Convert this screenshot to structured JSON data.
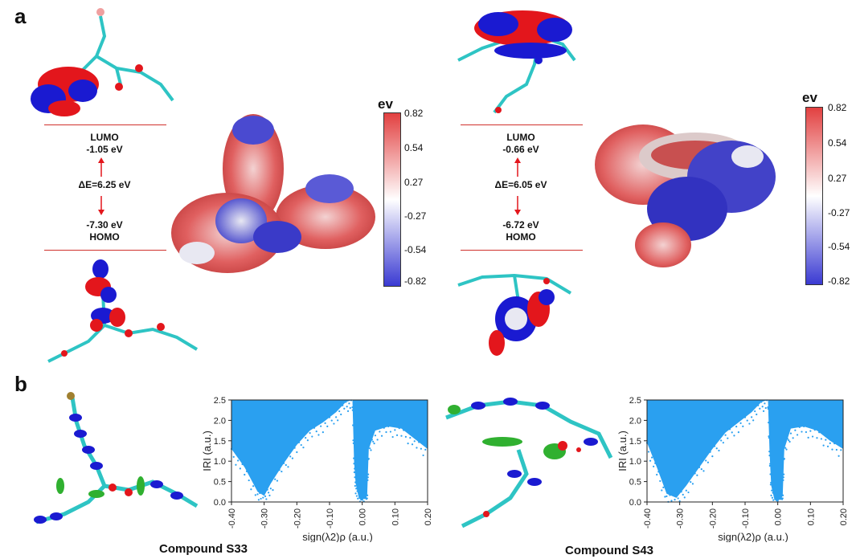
{
  "panels": {
    "a": "a",
    "b": "b"
  },
  "colorbar": {
    "title": "ev",
    "ticks": [
      "0.82",
      "0.54",
      "0.27",
      "-0.27",
      "-0.54",
      "-0.82"
    ]
  },
  "energy_diagrams": [
    {
      "lumo_label": "LUMO",
      "lumo_value": "-1.05 eV",
      "gap": "ΔE=6.25 eV",
      "homo_value": "-7.30 eV",
      "homo_label": "HOMO"
    },
    {
      "lumo_label": "LUMO",
      "lumo_value": "-0.66 eV",
      "gap": "ΔE=6.05 eV",
      "homo_value": "-6.72 eV",
      "homo_label": "HOMO"
    }
  ],
  "captions": [
    "Compound S33",
    "Compound S43"
  ],
  "colors": {
    "orbital_red": "#e3161c",
    "orbital_blue": "#1a1ad1",
    "scatter": "#2aa0f0",
    "level_line": "#d0312d",
    "atom_c": "#2ec4c4"
  },
  "chart_data": [
    {
      "type": "scatter",
      "title": "",
      "xlabel": "sign(λ2)ρ (a.u.)",
      "ylabel": "IRI (a.u.)",
      "xlim": [
        -0.4,
        0.2
      ],
      "ylim": [
        0.0,
        2.5
      ],
      "xticks": [
        "-0.40",
        "-0.30",
        "-0.20",
        "-0.10",
        "0.00",
        "0.10",
        "0.20"
      ],
      "yticks": [
        "0.0",
        "0.5",
        "1.0",
        "1.5",
        "2.0",
        "2.5"
      ],
      "lower_envelope": [
        [
          -0.4,
          1.3
        ],
        [
          -0.36,
          0.85
        ],
        [
          -0.32,
          0.25
        ],
        [
          -0.3,
          0.15
        ],
        [
          -0.28,
          0.45
        ],
        [
          -0.24,
          0.95
        ],
        [
          -0.2,
          1.4
        ],
        [
          -0.16,
          1.75
        ],
        [
          -0.12,
          1.95
        ],
        [
          -0.08,
          2.2
        ],
        [
          -0.05,
          2.45
        ],
        [
          -0.03,
          2.5
        ],
        [
          -0.025,
          1.0
        ],
        [
          -0.02,
          0.45
        ],
        [
          -0.01,
          0.08
        ],
        [
          0.0,
          0.05
        ],
        [
          0.01,
          0.1
        ],
        [
          0.015,
          0.15
        ],
        [
          0.02,
          1.3
        ],
        [
          0.04,
          1.75
        ],
        [
          0.08,
          1.85
        ],
        [
          0.12,
          1.8
        ],
        [
          0.16,
          1.55
        ],
        [
          0.2,
          1.3
        ]
      ]
    },
    {
      "type": "scatter",
      "title": "",
      "xlabel": "sign(λ2)ρ (a.u.)",
      "ylabel": "IRI (a.u.)",
      "xlim": [
        -0.4,
        0.2
      ],
      "ylim": [
        0.0,
        2.5
      ],
      "xticks": [
        "-0.40",
        "-0.30",
        "-0.20",
        "-0.10",
        "0.00",
        "0.10",
        "0.20"
      ],
      "yticks": [
        "0.0",
        "0.5",
        "1.0",
        "1.5",
        "2.0",
        "2.5"
      ],
      "lower_envelope": [
        [
          -0.4,
          1.45
        ],
        [
          -0.37,
          0.85
        ],
        [
          -0.34,
          0.2
        ],
        [
          -0.31,
          0.1
        ],
        [
          -0.28,
          0.4
        ],
        [
          -0.24,
          0.85
        ],
        [
          -0.2,
          1.3
        ],
        [
          -0.16,
          1.7
        ],
        [
          -0.12,
          1.95
        ],
        [
          -0.08,
          2.2
        ],
        [
          -0.05,
          2.45
        ],
        [
          -0.03,
          2.5
        ],
        [
          -0.025,
          1.2
        ],
        [
          -0.02,
          0.4
        ],
        [
          -0.01,
          0.05
        ],
        [
          0.0,
          0.03
        ],
        [
          0.01,
          0.08
        ],
        [
          0.015,
          0.15
        ],
        [
          0.02,
          1.3
        ],
        [
          0.04,
          1.8
        ],
        [
          0.08,
          1.85
        ],
        [
          0.12,
          1.75
        ],
        [
          0.16,
          1.5
        ],
        [
          0.2,
          1.3
        ]
      ]
    }
  ]
}
